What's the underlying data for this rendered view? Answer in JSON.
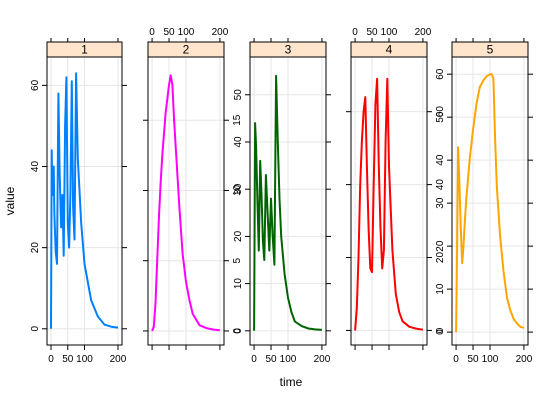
{
  "chart_data": {
    "type": "line",
    "layout": "faceted panels (lattice xyplot), 5 panels in one row, free y scales",
    "xlabel": "time",
    "ylabel": "value",
    "xlim": [
      -12,
      212
    ],
    "x_ticks": [
      0,
      50,
      100,
      200
    ],
    "x_tick_labels": [
      "0",
      "50",
      "100",
      "200"
    ],
    "x_axis_alternation": "labels on bottom for panels 1,3,5 and on top for panels 2,4",
    "y_axis_alternation": "labels on left for panels 1,3,5 and on right for panels 2,4",
    "strip_color": "#ffe5cc",
    "grid": true,
    "panels": [
      {
        "strip": "1",
        "color": "#0080ff",
        "ylim": [
          -4,
          67
        ],
        "y_ticks": [
          0,
          20,
          40,
          60
        ],
        "x": [
          0,
          2,
          4,
          8,
          10,
          14,
          18,
          22,
          26,
          30,
          34,
          38,
          42,
          46,
          50,
          54,
          58,
          62,
          66,
          70,
          75,
          80,
          90,
          100,
          120,
          140,
          160,
          180,
          200
        ],
        "y": [
          0,
          44,
          33,
          40,
          28,
          19,
          16,
          58,
          38,
          25,
          33,
          18,
          50,
          62,
          26,
          20,
          33,
          61,
          30,
          22,
          63,
          42,
          26,
          16,
          7,
          3,
          1,
          0.5,
          0.3
        ]
      },
      {
        "strip": "2",
        "color": "#ff00ff",
        "ylim": [
          -1,
          19.5
        ],
        "y_ticks": [
          0,
          5,
          10,
          15
        ],
        "x": [
          0,
          5,
          10,
          15,
          20,
          25,
          30,
          40,
          50,
          55,
          60,
          65,
          70,
          80,
          90,
          100,
          110,
          120,
          140,
          160,
          180,
          200
        ],
        "y": [
          0,
          0.3,
          2,
          5,
          8,
          10.5,
          12.5,
          15.5,
          17.5,
          18.2,
          17.5,
          15,
          13,
          9,
          5.5,
          3.5,
          2.2,
          1.2,
          0.4,
          0.2,
          0.1,
          0.05
        ]
      },
      {
        "strip": "3",
        "color": "#006400",
        "ylim": [
          -3,
          58
        ],
        "y_ticks": [
          0,
          10,
          20,
          30,
          40,
          50
        ],
        "x": [
          0,
          3,
          6,
          10,
          14,
          18,
          22,
          26,
          30,
          35,
          40,
          45,
          50,
          55,
          60,
          65,
          70,
          75,
          80,
          90,
          100,
          110,
          120,
          140,
          160,
          180,
          200
        ],
        "y": [
          0,
          44,
          39,
          27,
          17,
          36,
          29,
          19,
          15,
          33,
          25,
          17,
          28,
          20,
          14,
          54,
          40,
          28,
          20,
          12,
          7,
          4,
          2,
          1,
          0.5,
          0.3,
          0.2
        ],
        "data_labels": []
      },
      {
        "strip": "4",
        "color": "#ff0000",
        "ylim": [
          -4,
          75
        ],
        "y_ticks": [
          0,
          20,
          40,
          60
        ],
        "x": [
          0,
          5,
          10,
          15,
          20,
          25,
          30,
          35,
          40,
          45,
          50,
          55,
          60,
          65,
          70,
          75,
          80,
          85,
          90,
          95,
          100,
          110,
          120,
          130,
          140,
          160,
          180,
          200
        ],
        "y": [
          0,
          6,
          20,
          40,
          52,
          60,
          64,
          45,
          28,
          17,
          16,
          40,
          62,
          69,
          45,
          28,
          17,
          22,
          52,
          69,
          45,
          22,
          10,
          5,
          2.5,
          1,
          0.5,
          0.2
        ]
      },
      {
        "strip": "5",
        "color": "#ffa500",
        "ylim": [
          -3,
          64
        ],
        "y_ticks": [
          0,
          10,
          20,
          30,
          40,
          50,
          60
        ],
        "x": [
          0,
          3,
          6,
          10,
          14,
          18,
          22,
          26,
          30,
          40,
          50,
          60,
          70,
          80,
          90,
          100,
          105,
          110,
          115,
          120,
          130,
          140,
          150,
          160,
          170,
          180,
          190,
          200
        ],
        "y": [
          0,
          20,
          43,
          34,
          24,
          16,
          20,
          26,
          31,
          40,
          47,
          53,
          57,
          58.5,
          59.5,
          60,
          60,
          59,
          45,
          34,
          22,
          14,
          8,
          5,
          3,
          2,
          1.2,
          1
        ]
      }
    ]
  }
}
